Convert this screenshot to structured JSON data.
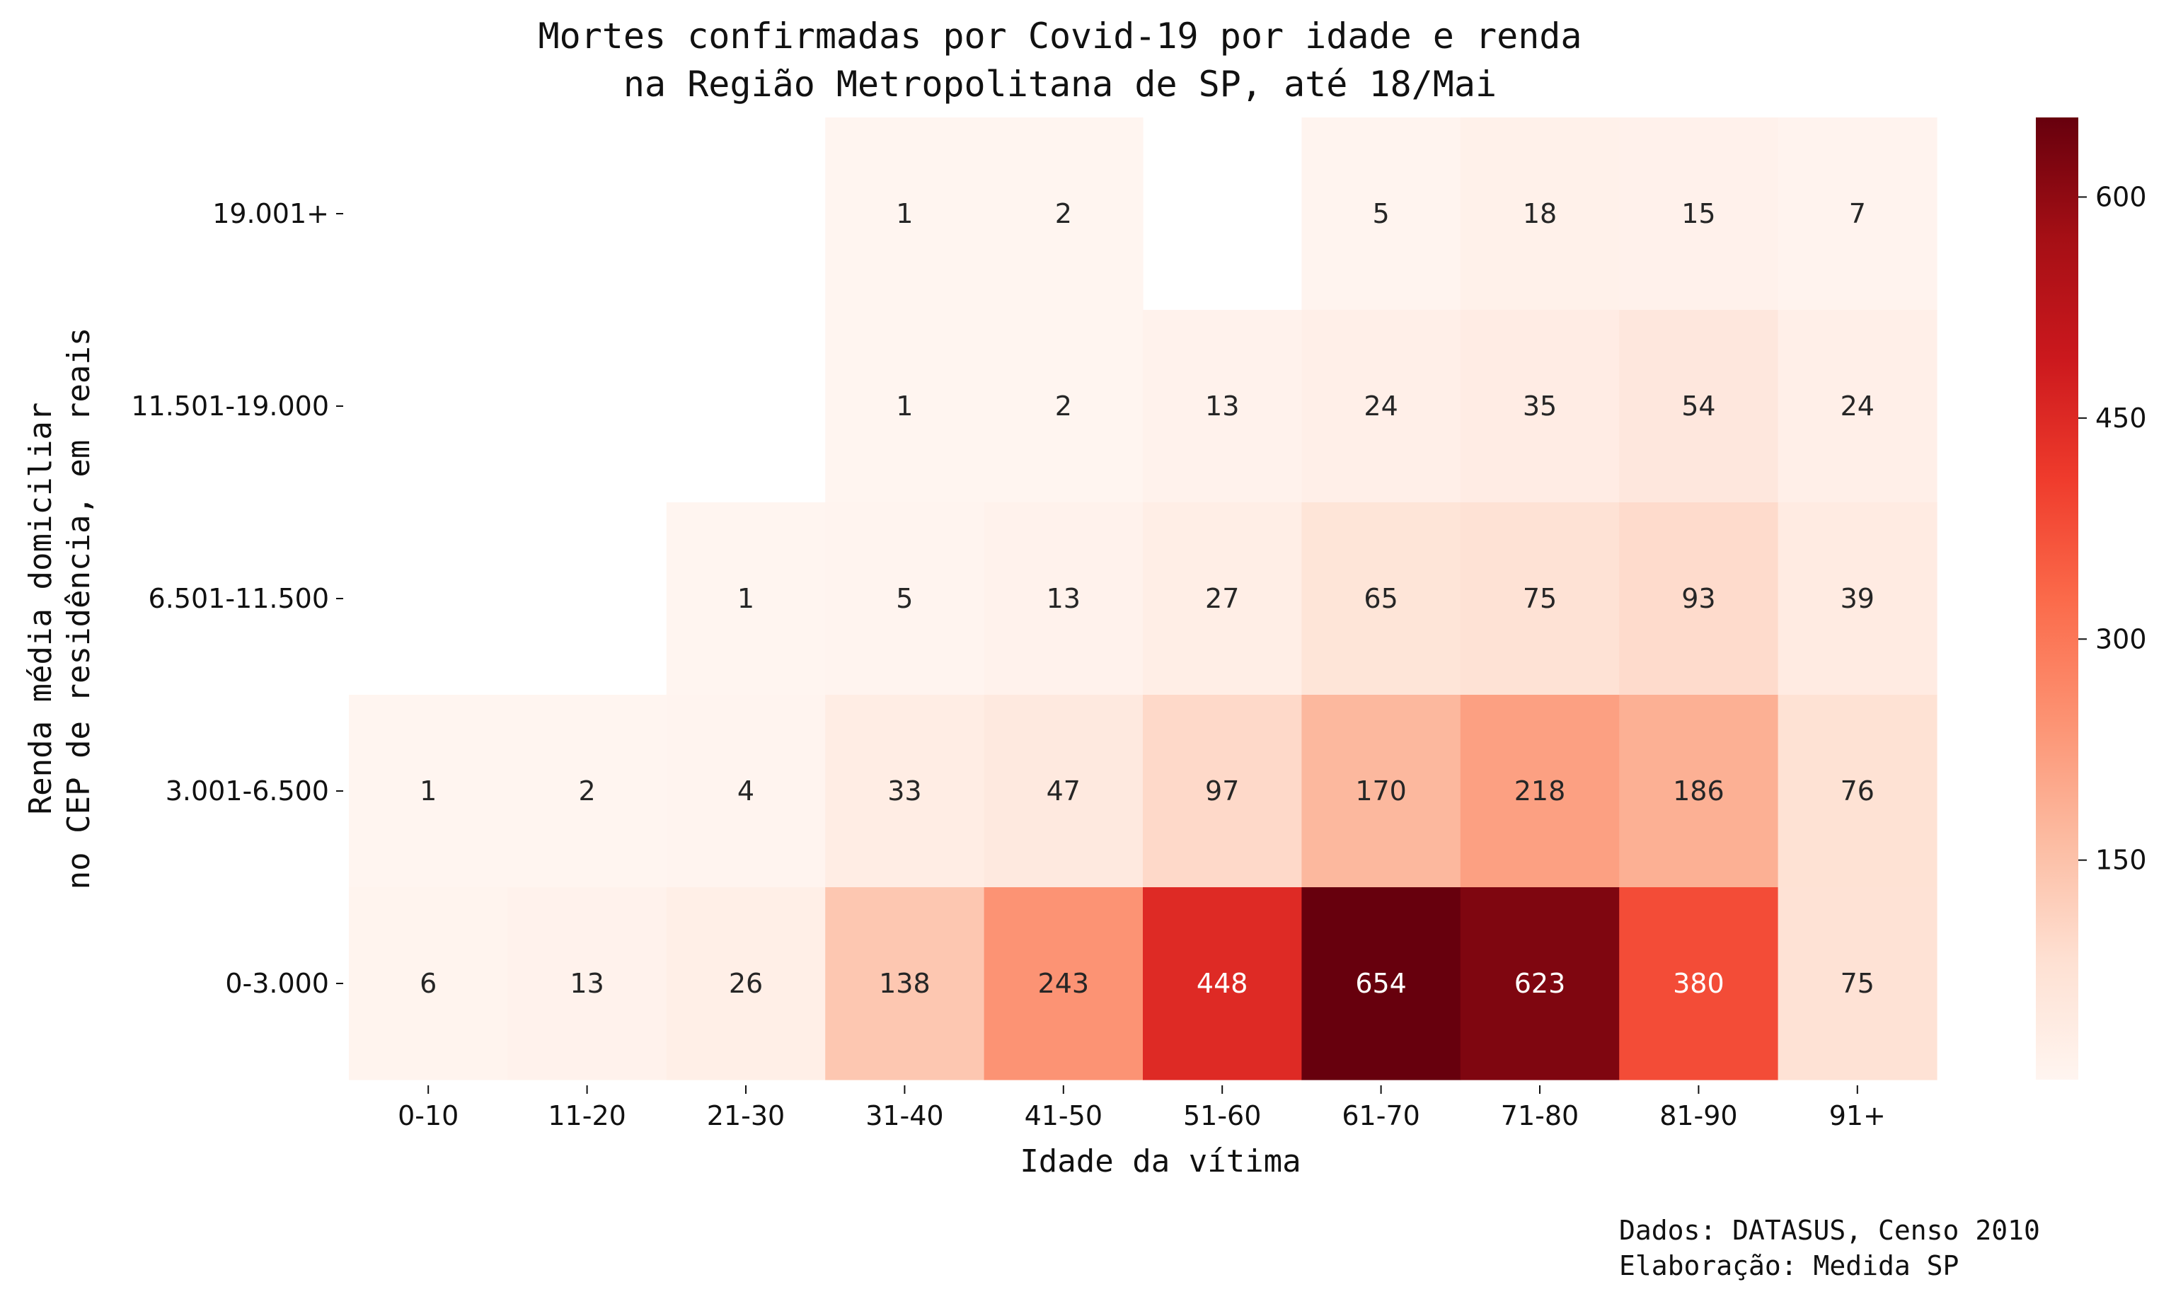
{
  "chart_data": {
    "type": "heatmap",
    "title": [
      "Mortes confirmadas por Covid-19 por idade e renda",
      "na Região Metropolitana de SP, até 18/Mai"
    ],
    "xlabel": "Idade da vítima",
    "ylabel": [
      "Renda média domiciliar",
      "no CEP de residência, em reais"
    ],
    "x_categories": [
      "0-10",
      "11-20",
      "21-30",
      "31-40",
      "41-50",
      "51-60",
      "61-70",
      "71-80",
      "81-90",
      "91+"
    ],
    "y_categories": [
      "19.001+",
      "11.501-19.000",
      "6.501-11.500",
      "3.001-6.500",
      "0-3.000"
    ],
    "values": [
      [
        null,
        null,
        null,
        1,
        2,
        null,
        5,
        18,
        15,
        7
      ],
      [
        null,
        null,
        null,
        1,
        2,
        13,
        24,
        35,
        54,
        24
      ],
      [
        null,
        null,
        1,
        5,
        13,
        27,
        65,
        75,
        93,
        39
      ],
      [
        1,
        2,
        4,
        33,
        47,
        97,
        170,
        218,
        186,
        76
      ],
      [
        6,
        13,
        26,
        138,
        243,
        448,
        654,
        623,
        380,
        75
      ]
    ],
    "colormap": "Reds",
    "colorbar": {
      "min": 1,
      "max": 654,
      "ticks": [
        150,
        300,
        450,
        600
      ]
    }
  },
  "footer": {
    "source": "Dados: DATASUS, Censo 2010",
    "credit": "Elaboração: Medida SP"
  }
}
